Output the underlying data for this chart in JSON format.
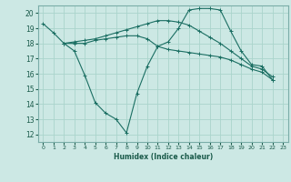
{
  "xlabel": "Humidex (Indice chaleur)",
  "bg_color": "#cce8e4",
  "grid_color": "#aad4cc",
  "line_color": "#1a6e62",
  "xlim": [
    -0.5,
    23.5
  ],
  "ylim": [
    11.5,
    20.5
  ],
  "xticks": [
    0,
    1,
    2,
    3,
    4,
    5,
    6,
    7,
    8,
    9,
    10,
    11,
    12,
    13,
    14,
    15,
    16,
    17,
    18,
    19,
    20,
    21,
    22,
    23
  ],
  "yticks": [
    12,
    13,
    14,
    15,
    16,
    17,
    18,
    19,
    20
  ],
  "series": [
    [
      19.3,
      18.7,
      18.0,
      17.5,
      15.9,
      14.1,
      13.4,
      13.0,
      12.1,
      14.7,
      16.5,
      17.8,
      18.1,
      19.0,
      20.2,
      20.3,
      20.3,
      20.2,
      18.8,
      17.5,
      16.6,
      16.5,
      15.6
    ],
    [
      18.0,
      18.0,
      18.0,
      18.2,
      18.3,
      18.4,
      18.5,
      18.5,
      18.3,
      17.8,
      17.6,
      17.5,
      17.4,
      17.3,
      17.2,
      17.1,
      16.9,
      16.6,
      16.3,
      16.1,
      15.6
    ],
    [
      18.0,
      18.1,
      18.2,
      18.3,
      18.5,
      18.7,
      18.9,
      19.1,
      19.3,
      19.5,
      19.5,
      19.4,
      19.2,
      18.8,
      18.4,
      18.0,
      17.5,
      17.0,
      16.5,
      16.3,
      15.8
    ]
  ],
  "series_x": [
    [
      0,
      1,
      2,
      3,
      4,
      5,
      6,
      7,
      8,
      9,
      10,
      11,
      12,
      13,
      14,
      15,
      16,
      17,
      18,
      19,
      20,
      21,
      22
    ],
    [
      2,
      3,
      4,
      5,
      6,
      7,
      8,
      9,
      10,
      11,
      12,
      13,
      14,
      15,
      16,
      17,
      18,
      19,
      20,
      21,
      22
    ],
    [
      2,
      3,
      4,
      5,
      6,
      7,
      8,
      9,
      10,
      11,
      12,
      13,
      14,
      15,
      16,
      17,
      18,
      19,
      20,
      21,
      22
    ]
  ]
}
